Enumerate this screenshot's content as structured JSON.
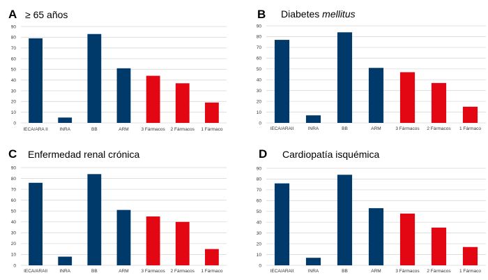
{
  "colors": {
    "blue": "#003a6b",
    "red": "#e30613",
    "grid": "#d9d9d9"
  },
  "chart_data": [
    {
      "id": "A",
      "type": "bar",
      "letter": "A",
      "title": "≥ 65 años",
      "title_italic": "",
      "categories": [
        "IECA/ARA II",
        "INRA",
        "BB",
        "ARM",
        "3 Fármacos",
        "2 Fármacos",
        "1 Fármaco"
      ],
      "values": [
        79,
        5,
        83,
        51,
        44,
        37,
        19
      ],
      "bar_colors": [
        "blue",
        "blue",
        "blue",
        "blue",
        "red",
        "red",
        "red"
      ],
      "ylim": [
        0,
        90
      ],
      "yticks": [
        0,
        10,
        20,
        30,
        40,
        50,
        60,
        70,
        80,
        90
      ],
      "grid": true
    },
    {
      "id": "B",
      "type": "bar",
      "letter": "B",
      "title": "Diabetes ",
      "title_italic": "mellitus",
      "categories": [
        "IECA/ARAII",
        "INRA",
        "BB",
        "ARM",
        "3 Fármacos",
        "2 Fármacos",
        "1 Fármaco"
      ],
      "values": [
        77,
        7,
        84,
        51,
        47,
        37,
        15
      ],
      "bar_colors": [
        "blue",
        "blue",
        "blue",
        "blue",
        "red",
        "red",
        "red"
      ],
      "ylim": [
        0,
        90
      ],
      "yticks": [
        0,
        10,
        20,
        30,
        40,
        50,
        60,
        70,
        80,
        90
      ],
      "grid": true
    },
    {
      "id": "C",
      "type": "bar",
      "letter": "C",
      "title": "Enfermedad renal crónica",
      "title_italic": "",
      "categories": [
        "IECA/ARAII",
        "INRA",
        "BB",
        "ARM",
        "3 Fármacos",
        "2 Fármacos",
        "1 Fármaco"
      ],
      "values": [
        76,
        8,
        84,
        51,
        45,
        40,
        15
      ],
      "bar_colors": [
        "blue",
        "blue",
        "blue",
        "blue",
        "red",
        "red",
        "red"
      ],
      "ylim": [
        0,
        90
      ],
      "yticks": [
        0,
        10,
        20,
        30,
        40,
        50,
        60,
        70,
        80,
        90
      ],
      "grid": true
    },
    {
      "id": "D",
      "type": "bar",
      "letter": "D",
      "title": "Cardiopatía isquémica",
      "title_italic": "",
      "categories": [
        "IECA/ARAII",
        "INRA",
        "BB",
        "ARM",
        "3 Fármacos",
        "2 Fármacos",
        "1 Fármaco"
      ],
      "values": [
        76,
        7,
        84,
        53,
        48,
        35,
        17
      ],
      "bar_colors": [
        "blue",
        "blue",
        "blue",
        "blue",
        "red",
        "red",
        "red"
      ],
      "ylim": [
        0,
        90
      ],
      "yticks": [
        0,
        10,
        20,
        30,
        40,
        50,
        60,
        70,
        80,
        90
      ],
      "grid": true
    }
  ]
}
